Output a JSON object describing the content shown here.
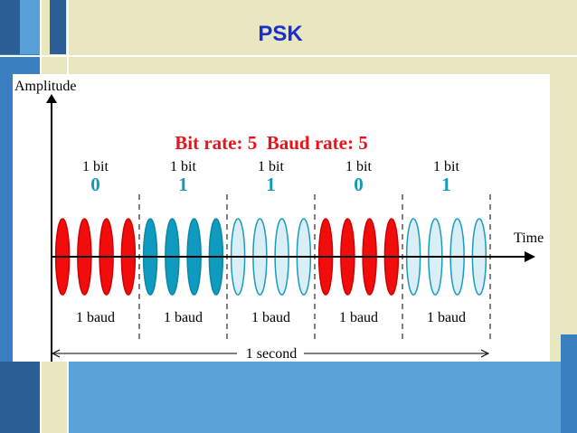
{
  "title": "PSK",
  "diagram": {
    "y_axis_label": "Amplitude",
    "x_axis_label": "Time",
    "heading": "Bit rate: 5  Baud rate: 5",
    "bits": [
      {
        "label": "1 bit",
        "value": "0"
      },
      {
        "label": "1 bit",
        "value": "1"
      },
      {
        "label": "1 bit",
        "value": "1"
      },
      {
        "label": "1 bit",
        "value": "0"
      },
      {
        "label": "1 bit",
        "value": "1"
      }
    ],
    "baud_labels": [
      "1 baud",
      "1 baud",
      "1 baud",
      "1 baud",
      "1 baud"
    ],
    "duration_label": "1 second"
  }
}
